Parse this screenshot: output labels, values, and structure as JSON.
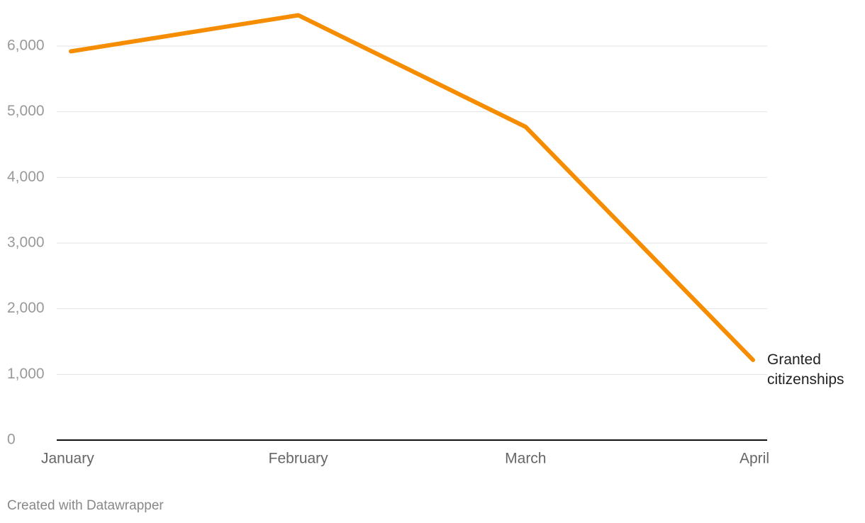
{
  "chart_data": {
    "type": "line",
    "categories": [
      "January",
      "February",
      "March",
      "April"
    ],
    "series": [
      {
        "name": "Granted citizenships",
        "color": "#f68c00",
        "values": [
          5920,
          6470,
          4770,
          1220
        ]
      }
    ],
    "ylim": [
      0,
      6500
    ],
    "yticks": [
      0,
      {
        "value": 1000,
        "label": "1,000"
      },
      {
        "value": 2000,
        "label": "2,000"
      },
      {
        "value": 3000,
        "label": "3,000"
      },
      {
        "value": 4000,
        "label": "4,000"
      },
      {
        "value": 5000,
        "label": "5,000"
      },
      {
        "value": 6000,
        "label": "6,000"
      }
    ],
    "grid": true,
    "credit": "Created with Datawrapper"
  }
}
